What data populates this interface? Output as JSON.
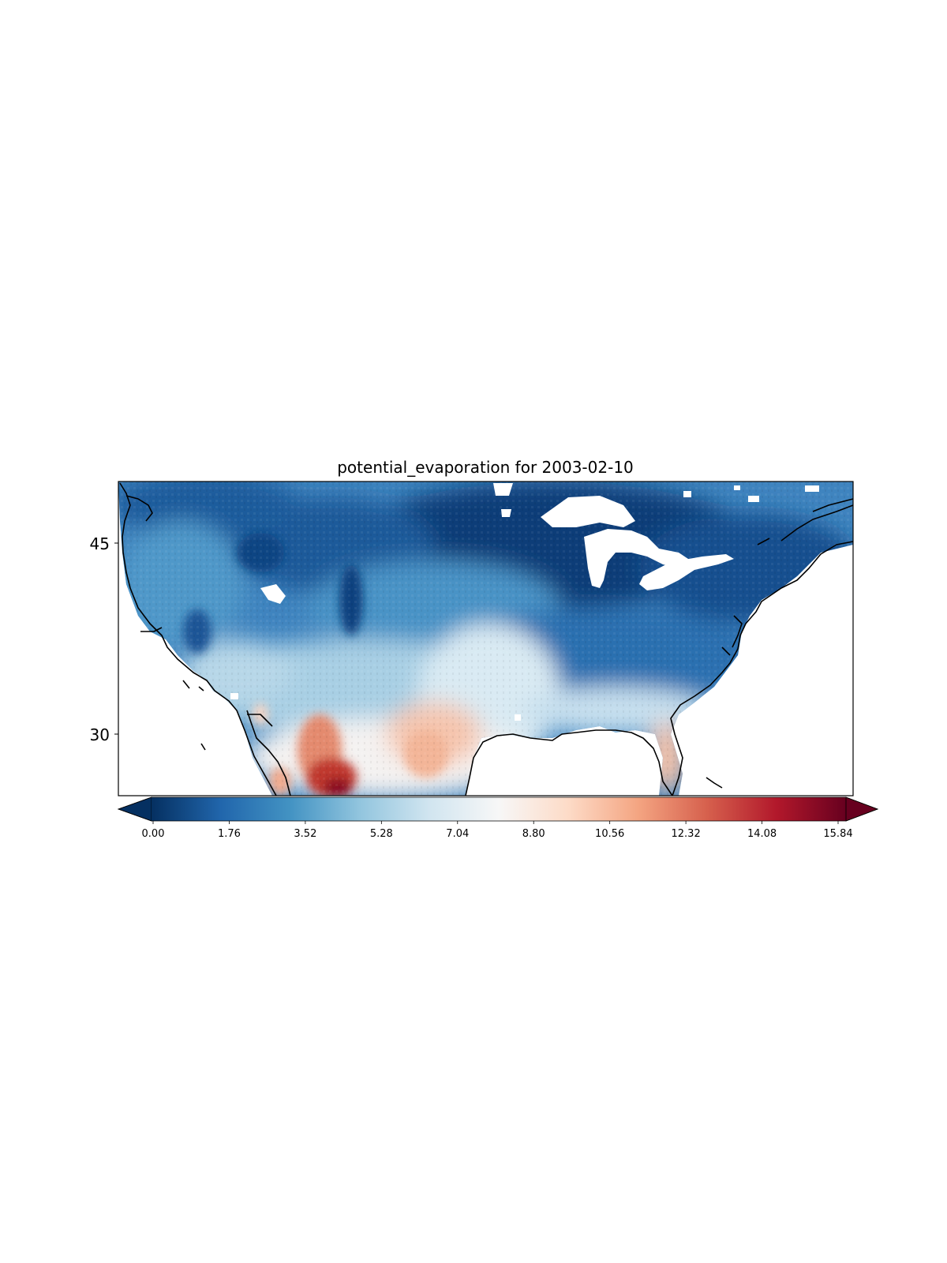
{
  "title": "potential_evaporation for 2003-02-10",
  "map": {
    "type": "heatmap",
    "variable": "potential_evaporation",
    "date": "2003-02-10",
    "colormap": "RdBu_r",
    "extend": "both",
    "lat_range": [
      25,
      50
    ],
    "lon_range": [
      -125,
      -67
    ],
    "y_ticks": [
      {
        "value": 45,
        "label": "45"
      },
      {
        "value": 30,
        "label": "30"
      }
    ],
    "masked_water_color": "#ffffff",
    "coastline_color": "#000000"
  },
  "colorbar": {
    "min": 0.0,
    "max": 15.84,
    "ticks": [
      {
        "value": 0.0,
        "label": "0.00"
      },
      {
        "value": 1.76,
        "label": "1.76"
      },
      {
        "value": 3.52,
        "label": "3.52"
      },
      {
        "value": 5.28,
        "label": "5.28"
      },
      {
        "value": 7.04,
        "label": "7.04"
      },
      {
        "value": 8.8,
        "label": "8.80"
      },
      {
        "value": 10.56,
        "label": "10.56"
      },
      {
        "value": 12.32,
        "label": "12.32"
      },
      {
        "value": 14.08,
        "label": "14.08"
      },
      {
        "value": 15.84,
        "label": "15.84"
      }
    ],
    "colors": [
      "#053061",
      "#2166ac",
      "#4393c3",
      "#92c5de",
      "#d1e5f0",
      "#f7f7f7",
      "#fddbc7",
      "#f4a582",
      "#d6604d",
      "#b2182b",
      "#67001f"
    ]
  }
}
